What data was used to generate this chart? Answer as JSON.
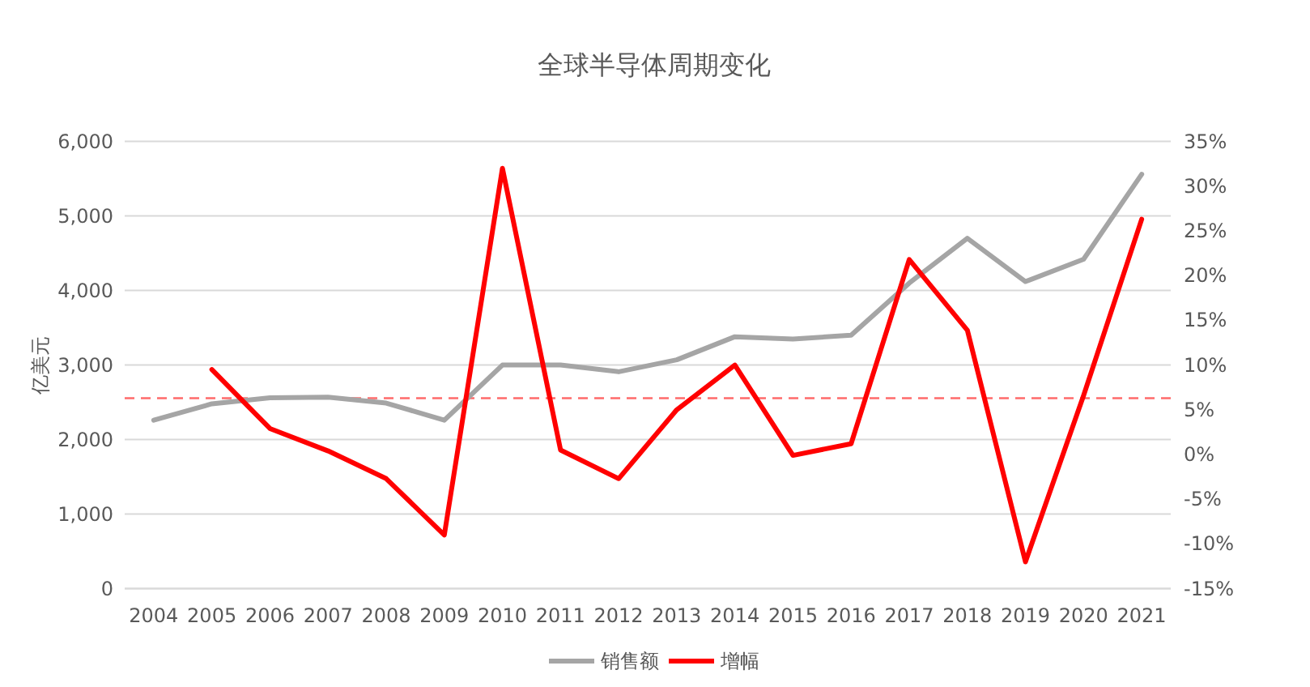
{
  "chart_data": {
    "type": "line",
    "title": "全球半导体周期变化",
    "ylabel": "亿美元",
    "categories": [
      "2004",
      "2005",
      "2006",
      "2007",
      "2008",
      "2009",
      "2010",
      "2011",
      "2012",
      "2013",
      "2014",
      "2015",
      "2016",
      "2017",
      "2018",
      "2019",
      "2020",
      "2021"
    ],
    "series": [
      {
        "name": "销售额",
        "color": "#a5a5a5",
        "values": [
          2260,
          2480,
          2560,
          2570,
          2490,
          2260,
          3000,
          3000,
          2910,
          3070,
          3380,
          3350,
          3400,
          4100,
          4700,
          4120,
          4420,
          5560
        ]
      },
      {
        "name": "增幅",
        "color": "#ff0000",
        "axis": "y2",
        "values": [
          null,
          9.5,
          2.9,
          0.4,
          -2.7,
          -9.0,
          32.0,
          0.5,
          -2.7,
          5.0,
          10.0,
          -0.1,
          1.2,
          21.8,
          13.9,
          -12.0,
          6.6,
          26.3
        ]
      }
    ],
    "ylim": [
      0,
      6000
    ],
    "yticks": [
      0,
      {
        "value": 1000,
        "label": "1,000"
      },
      {
        "value": 2000,
        "label": "2,000"
      },
      {
        "value": 3000,
        "label": "3,000"
      },
      {
        "value": 4000,
        "label": "4,000"
      },
      {
        "value": 5000,
        "label": "5,000"
      },
      {
        "value": 6000,
        "label": "6,000"
      }
    ],
    "y2lim": [
      -15,
      35
    ],
    "y2ticks": [
      {
        "value": -15,
        "label": "-15%"
      },
      {
        "value": -10,
        "label": "-10%"
      },
      {
        "value": -5,
        "label": "-5%"
      },
      {
        "value": 0,
        "label": "0%"
      },
      {
        "value": 5,
        "label": "5%"
      },
      {
        "value": 10,
        "label": "10%"
      },
      {
        "value": 15,
        "label": "15%"
      },
      {
        "value": 20,
        "label": "20%"
      },
      {
        "value": 25,
        "label": "25%"
      },
      {
        "value": 30,
        "label": "30%"
      },
      {
        "value": 35,
        "label": "35%"
      }
    ],
    "ref_lines": [
      {
        "axis": "y2",
        "value": 6.3,
        "color": "#ff6b6b",
        "line_style": "dashed"
      }
    ],
    "grid": "y",
    "legend": "bottom"
  }
}
